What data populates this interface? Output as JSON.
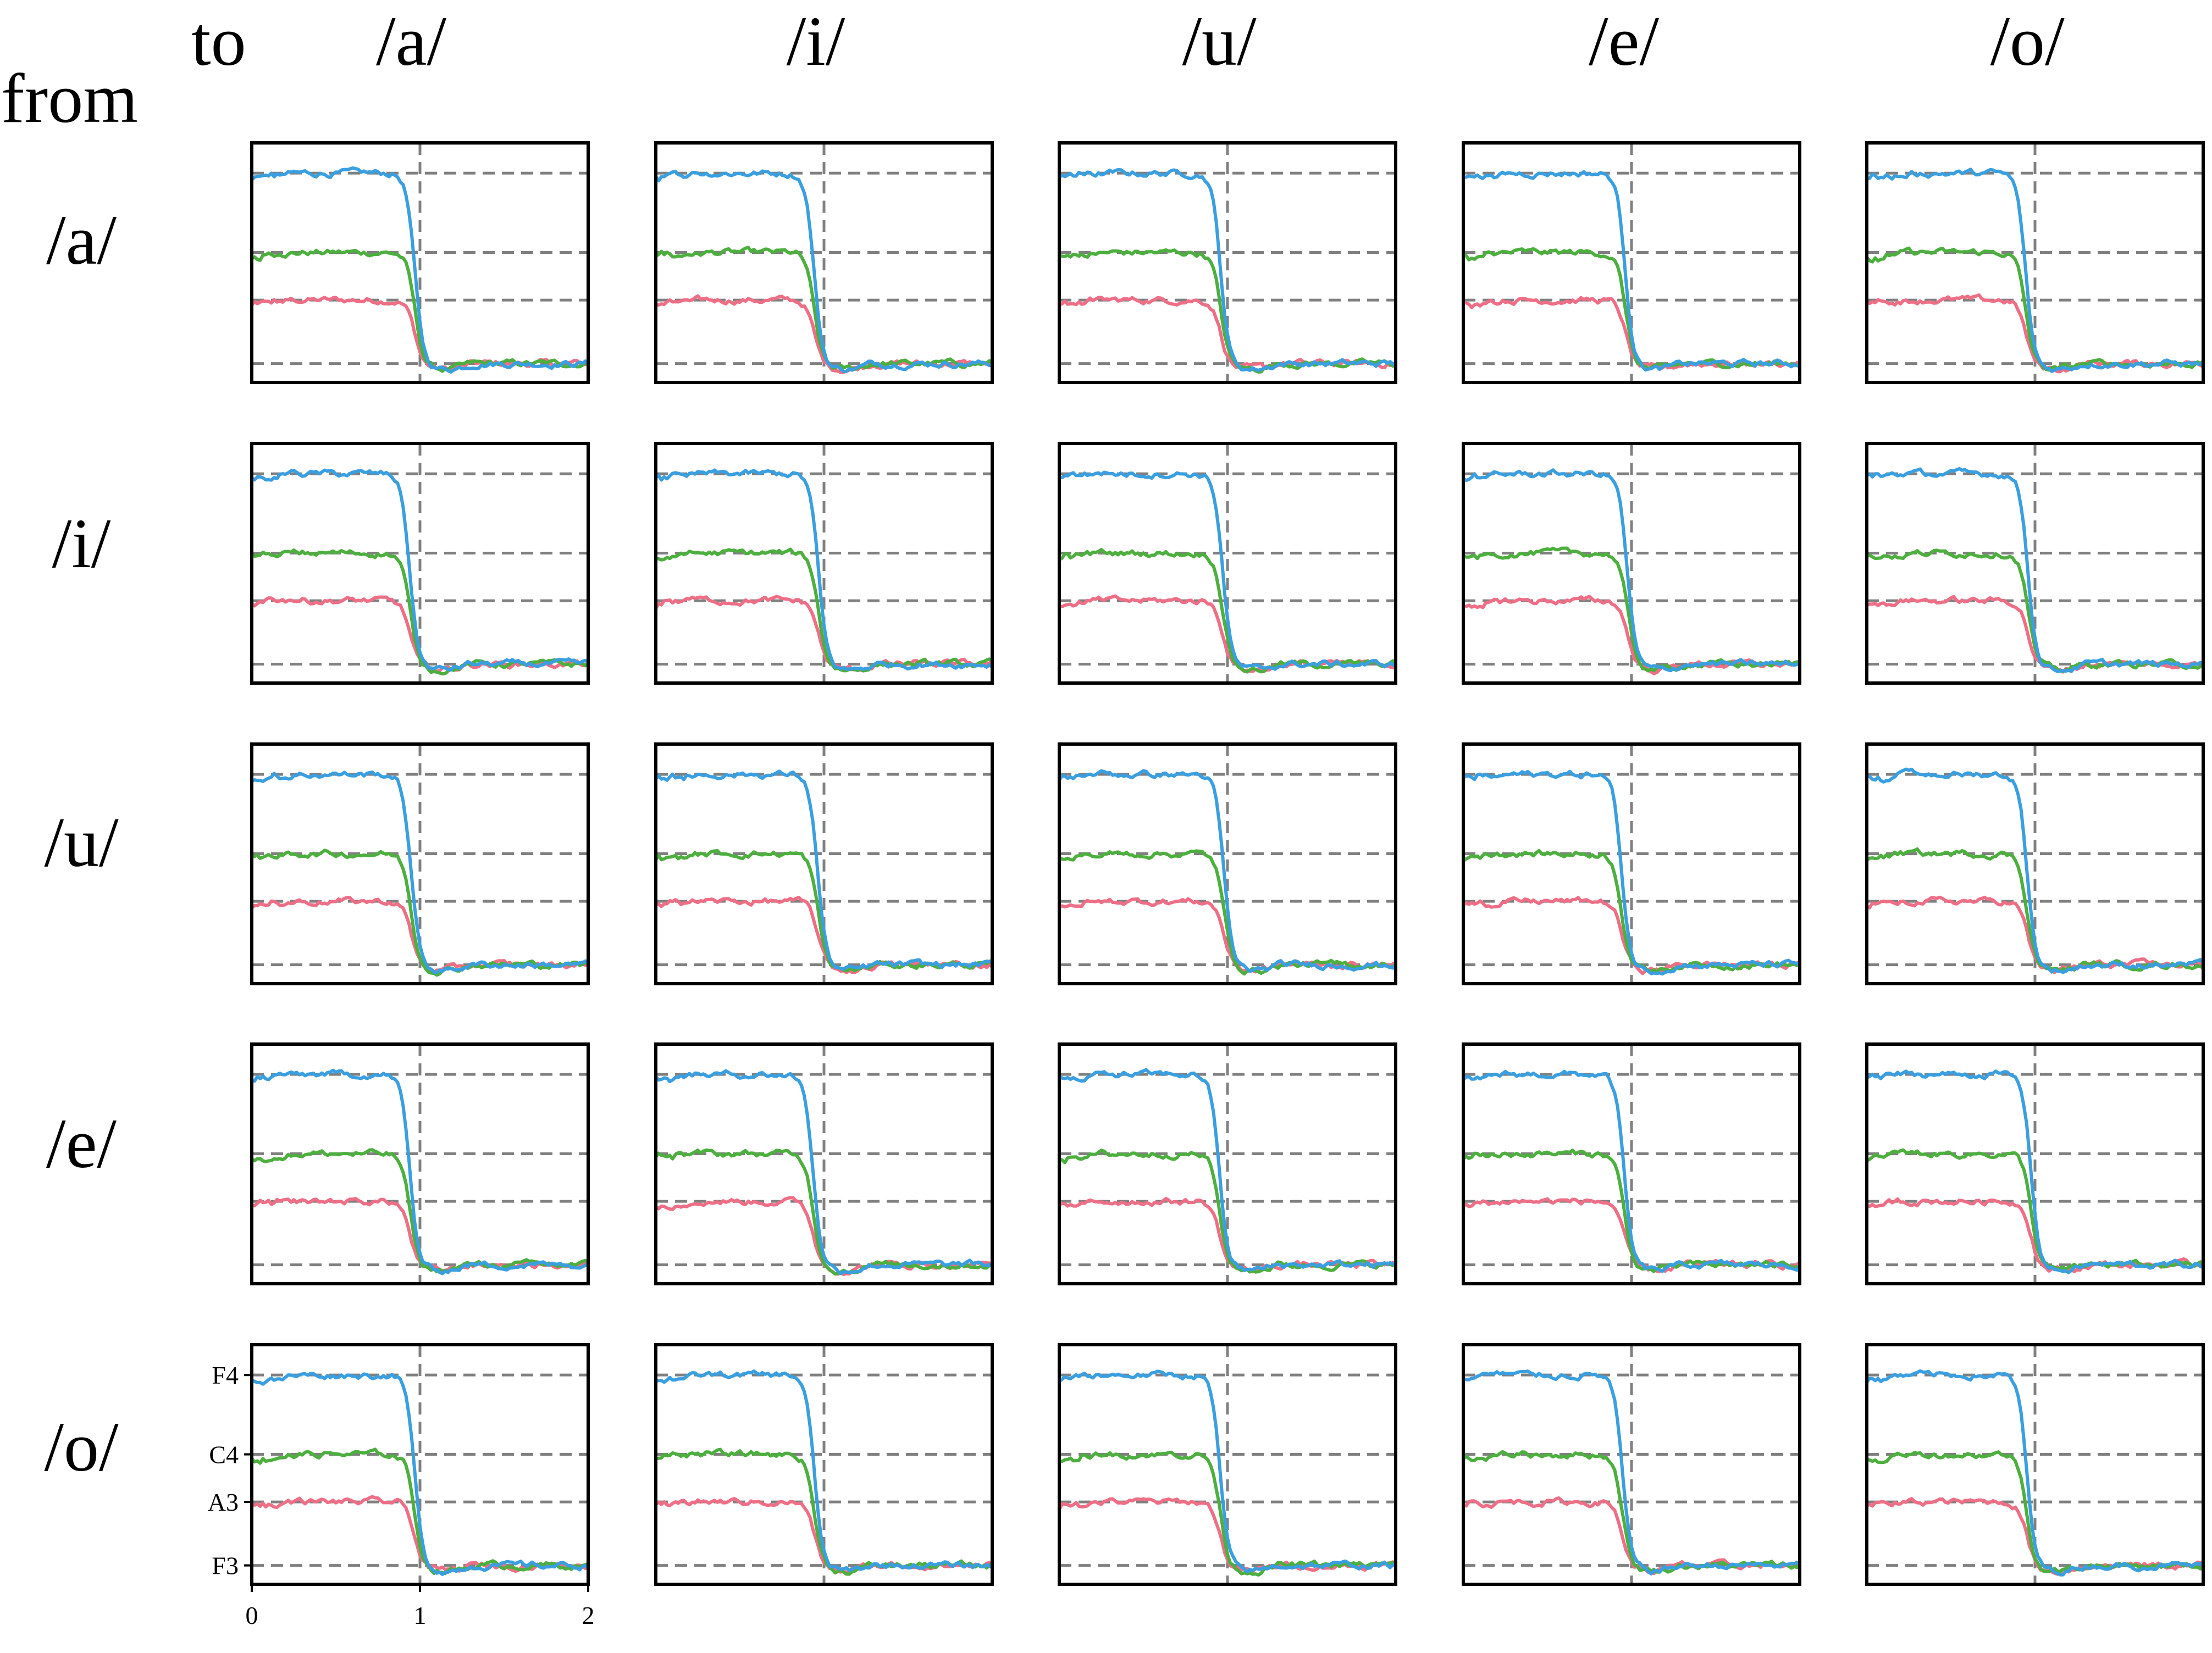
{
  "labels": {
    "to": "to",
    "from": "from"
  },
  "colors": {
    "lower": "#ee6e86",
    "middle": "#4caf3e",
    "upper": "#3a9fe0",
    "reference": "#808080",
    "frame": "#000000"
  },
  "chart_data": {
    "type": "line",
    "description_grid": "5x5 transitions",
    "to_vowels": [
      "/a/",
      "/i/",
      "/u/",
      "/e/",
      "/o/"
    ],
    "from_vowels": [
      "/a/",
      "/i/",
      "/u/",
      "/e/",
      "/o/"
    ],
    "xlim": [
      0,
      2
    ],
    "x_ticks": [
      0,
      1,
      2
    ],
    "x_tick_labels": [
      "0",
      "1",
      "2"
    ],
    "y_scale": "log (pitch)",
    "y_ticks": [
      "F3",
      "A3",
      "C4",
      "F4"
    ],
    "y_tick_hz": [
      174.61,
      220.0,
      261.63,
      349.23
    ],
    "ylim_hz": [
      163,
      390
    ],
    "reference_lines": {
      "x": 1,
      "y_hz": [
        174.61,
        220.0,
        261.63,
        349.23
      ]
    },
    "transition_time": 1.0,
    "series": [
      {
        "color": "lower",
        "before_hz": 220.0,
        "after_hz": 174.61
      },
      {
        "color": "middle",
        "before_hz": 261.63,
        "after_hz": 174.61
      },
      {
        "color": "upper",
        "before_hz": 349.23,
        "after_hz": 174.61
      }
    ]
  }
}
